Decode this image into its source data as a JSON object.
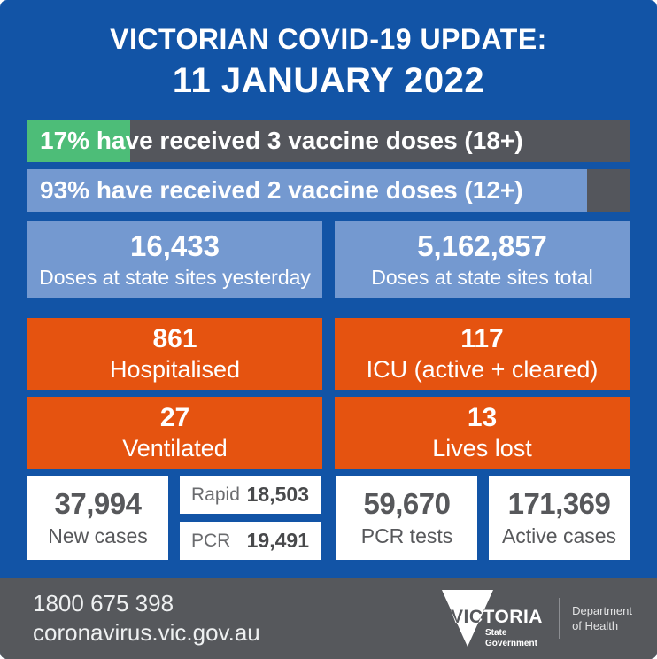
{
  "header": {
    "title_line1": "VICTORIAN COVID-19 UPDATE:",
    "title_line2": "11 JANUARY 2022"
  },
  "vaccine_bars": [
    {
      "percent": 17,
      "label": "17% have received 3 vaccine doses (18+)",
      "fill_color": "#4dbd78"
    },
    {
      "percent": 93,
      "label": "93% have received 2 vaccine doses (12+)",
      "fill_color": "#7499d0"
    }
  ],
  "dose_stats": [
    {
      "value": "16,433",
      "label": "Doses at state sites yesterday"
    },
    {
      "value": "5,162,857",
      "label": "Doses at state sites total"
    }
  ],
  "hospital_stats": [
    {
      "value": "861",
      "label": "Hospitalised"
    },
    {
      "value": "117",
      "label": "ICU (active + cleared)"
    },
    {
      "value": "27",
      "label": "Ventilated"
    },
    {
      "value": "13",
      "label": "Lives lost"
    }
  ],
  "case_stats": {
    "new_cases": {
      "value": "37,994",
      "label": "New cases"
    },
    "rapid": {
      "label": "Rapid",
      "value": "18,503"
    },
    "pcr": {
      "label": "PCR",
      "value": "19,491"
    },
    "pcr_tests": {
      "value": "59,670",
      "label": "PCR tests"
    },
    "active_cases": {
      "value": "171,369",
      "label": "Active cases"
    }
  },
  "footer": {
    "phone": "1800 675 398",
    "website": "coronavirus.vic.gov.au",
    "logo_brand": "VICTORIA",
    "logo_sub_line1": "State",
    "logo_sub_line2": "Government",
    "department_line1": "Department",
    "department_line2": "of Health"
  },
  "colors": {
    "background_blue": "#1254a6",
    "light_blue": "#7499d0",
    "green": "#4dbd78",
    "bar_gray": "#54565c",
    "orange": "#e55310",
    "tile_white": "#ffffff",
    "dark_text": "#57585b",
    "footer_gray": "#56585c"
  },
  "chart_data": {
    "type": "bar",
    "title": "Victorian COVID-19 Update: 11 January 2022",
    "categories": [
      "3 vaccine doses (18+)",
      "2 vaccine doses (12+)"
    ],
    "values": [
      17,
      93
    ],
    "unit": "percent",
    "xlim": [
      0,
      100
    ],
    "stats": {
      "doses_at_state_sites_yesterday": 16433,
      "doses_at_state_sites_total": 5162857,
      "hospitalised": 861,
      "icu_active_plus_cleared": 117,
      "ventilated": 27,
      "lives_lost": 13,
      "new_cases": 37994,
      "new_cases_rapid": 18503,
      "new_cases_pcr": 19491,
      "pcr_tests": 59670,
      "active_cases": 171369
    }
  }
}
